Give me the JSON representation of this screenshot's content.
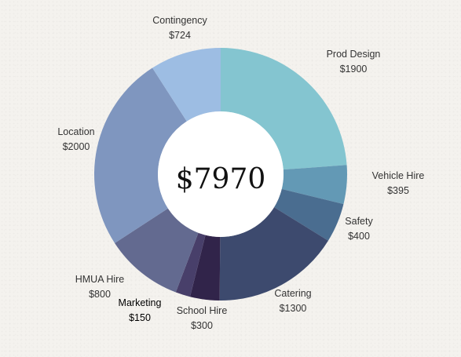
{
  "chart_data": {
    "type": "pie",
    "total_label": "$7970",
    "categories": [
      "Prod Design",
      "Vehicle Hire",
      "Safety",
      "Catering",
      "School Hire",
      "Marketing",
      "HMUA Hire",
      "Location",
      "Contingency"
    ],
    "values": [
      1900,
      395,
      400,
      1300,
      300,
      150,
      800,
      2000,
      724
    ],
    "value_labels": [
      "$1900",
      "$395",
      "$400",
      "$1300",
      "$300",
      "$150",
      "$800",
      "$2000",
      "$724"
    ],
    "colors": [
      "#84c5d0",
      "#6399b5",
      "#4a6d90",
      "#3d4a6e",
      "#31244a",
      "#483f6a",
      "#636a90",
      "#7f96bf",
      "#9dbde3"
    ],
    "label_text_colors": [
      "#333333",
      "#333333",
      "#333333",
      "#333333",
      "#333333",
      "#000000",
      "#333333",
      "#333333",
      "#333333"
    ],
    "donut": true,
    "legend": "none"
  }
}
